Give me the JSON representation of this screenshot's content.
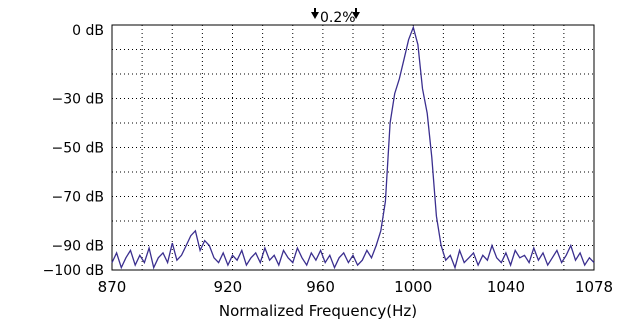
{
  "chart_data": {
    "type": "line",
    "title": "",
    "annotation": "0.2%",
    "xlabel": "Normalized Frequency(Hz)",
    "ylabel": "",
    "xlim": [
      870,
      1078
    ],
    "ylim": [
      -100,
      0
    ],
    "x_ticks": [
      870,
      920,
      960,
      1000,
      1040,
      1078
    ],
    "x_tick_labels": [
      "870",
      "920",
      "960",
      "1000",
      "1040",
      "1078"
    ],
    "y_ticks": [
      0,
      -30,
      -50,
      -70,
      -90,
      -100
    ],
    "y_tick_labels": [
      "0 dB",
      "−30 dB",
      "−50 dB",
      "−70 dB",
      "−90 dB",
      "−100 dB"
    ],
    "grid": true,
    "line_color": "#3b2f8f",
    "series": [
      {
        "x": [
          870,
          872,
          874,
          876,
          878,
          880,
          882,
          884,
          886,
          888,
          890,
          892,
          894,
          896,
          898,
          900,
          902,
          904,
          906,
          908,
          910,
          912,
          914,
          916,
          918,
          920,
          922,
          924,
          926,
          928,
          930,
          932,
          934,
          936,
          938,
          940,
          942,
          944,
          946,
          948,
          950,
          952,
          954,
          956,
          958,
          960,
          962,
          964,
          966,
          968,
          970,
          972,
          974,
          976,
          978,
          980,
          982,
          984,
          986,
          988,
          990,
          992,
          994,
          996,
          998,
          1000,
          1002,
          1004,
          1006,
          1008,
          1010,
          1012,
          1014,
          1016,
          1018,
          1020,
          1022,
          1024,
          1026,
          1028,
          1030,
          1032,
          1034,
          1036,
          1038,
          1040,
          1042,
          1044,
          1046,
          1048,
          1050,
          1052,
          1054,
          1056,
          1058,
          1060,
          1062,
          1064,
          1066,
          1068,
          1070,
          1072,
          1074,
          1076,
          1078
        ],
        "y": [
          -97,
          -93,
          -99,
          -95,
          -92,
          -98,
          -94,
          -97,
          -91,
          -99,
          -95,
          -93,
          -97,
          -89,
          -96,
          -94,
          -90,
          -86,
          -84,
          -92,
          -88,
          -90,
          -95,
          -97,
          -93,
          -98,
          -94,
          -96,
          -92,
          -98,
          -95,
          -93,
          -97,
          -91,
          -96,
          -94,
          -98,
          -92,
          -95,
          -97,
          -91,
          -95,
          -98,
          -93,
          -96,
          -92,
          -97,
          -94,
          -99,
          -95,
          -93,
          -97,
          -94,
          -98,
          -96,
          -92,
          -95,
          -90,
          -84,
          -72,
          -40,
          -28,
          -22,
          -14,
          -6,
          -1,
          -8,
          -26,
          -36,
          -54,
          -78,
          -90,
          -96,
          -94,
          -99,
          -92,
          -97,
          -95,
          -93,
          -98,
          -94,
          -96,
          -90,
          -95,
          -97,
          -93,
          -98,
          -92,
          -95,
          -94,
          -97,
          -91,
          -96,
          -93,
          -98,
          -95,
          -92,
          -97,
          -94,
          -90,
          -96,
          -93,
          -98,
          -95,
          -97
        ]
      }
    ]
  }
}
